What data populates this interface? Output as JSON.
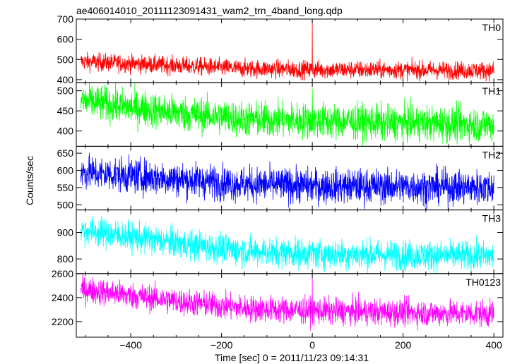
{
  "chart_data": {
    "type": "line",
    "title": "ae406014010_20111123091431_wam2_trn_4band_long.qdp",
    "xlabel": "Time [sec] 0 = 2011/11/23 09:14:31",
    "ylabel": "Counts/sec",
    "xlim": [
      -520,
      420
    ],
    "x_ticks": [
      -400,
      -200,
      0,
      200,
      400
    ],
    "x_tick_labels": [
      "−400",
      "−200",
      "0",
      "200",
      "400"
    ],
    "x_range": [
      -510,
      400
    ],
    "panels": [
      {
        "name": "TH0",
        "color": "#ff0000",
        "ylim": [
          385,
          700
        ],
        "yticks": [
          400,
          500,
          600,
          700
        ],
        "trend": [
          [
            -510,
            490
          ],
          [
            -300,
            470
          ],
          [
            -150,
            455
          ],
          [
            0,
            450
          ],
          [
            200,
            448
          ],
          [
            400,
            445
          ]
        ],
        "noise": 22,
        "spikes": [
          {
            "x": 0,
            "y": 700
          }
        ]
      },
      {
        "name": "TH1",
        "color": "#00ff00",
        "ylim": [
          362,
          520
        ],
        "yticks": [
          400,
          450,
          500
        ],
        "trend": [
          [
            -510,
            475
          ],
          [
            -300,
            445
          ],
          [
            -150,
            430
          ],
          [
            0,
            425
          ],
          [
            200,
            420
          ],
          [
            400,
            415
          ]
        ],
        "noise": 22,
        "spikes": [
          {
            "x": 0,
            "y": 505
          }
        ]
      },
      {
        "name": "TH2",
        "color": "#0000ff",
        "ylim": [
          485,
          670
        ],
        "yticks": [
          500,
          550,
          600,
          650
        ],
        "trend": [
          [
            -510,
            595
          ],
          [
            -300,
            575
          ],
          [
            -150,
            560
          ],
          [
            0,
            555
          ],
          [
            200,
            553
          ],
          [
            400,
            550
          ]
        ],
        "noise": 25,
        "spikes": []
      },
      {
        "name": "TH3",
        "color": "#00ffff",
        "ylim": [
          745,
          985
        ],
        "yticks": [
          800,
          900
        ],
        "trend": [
          [
            -510,
            910
          ],
          [
            -300,
            860
          ],
          [
            -150,
            830
          ],
          [
            0,
            820
          ],
          [
            200,
            815
          ],
          [
            400,
            810
          ]
        ],
        "noise": 28,
        "spikes": []
      },
      {
        "name": "TH0123",
        "color": "#ff00ff",
        "ylim": [
          2070,
          2600
        ],
        "yticks": [
          2200,
          2400,
          2600
        ],
        "trend": [
          [
            -510,
            2470
          ],
          [
            -300,
            2370
          ],
          [
            -150,
            2310
          ],
          [
            0,
            2290
          ],
          [
            200,
            2275
          ],
          [
            400,
            2265
          ]
        ],
        "noise": 55,
        "spikes": [
          {
            "x": 0,
            "y": 2600
          }
        ]
      }
    ]
  }
}
